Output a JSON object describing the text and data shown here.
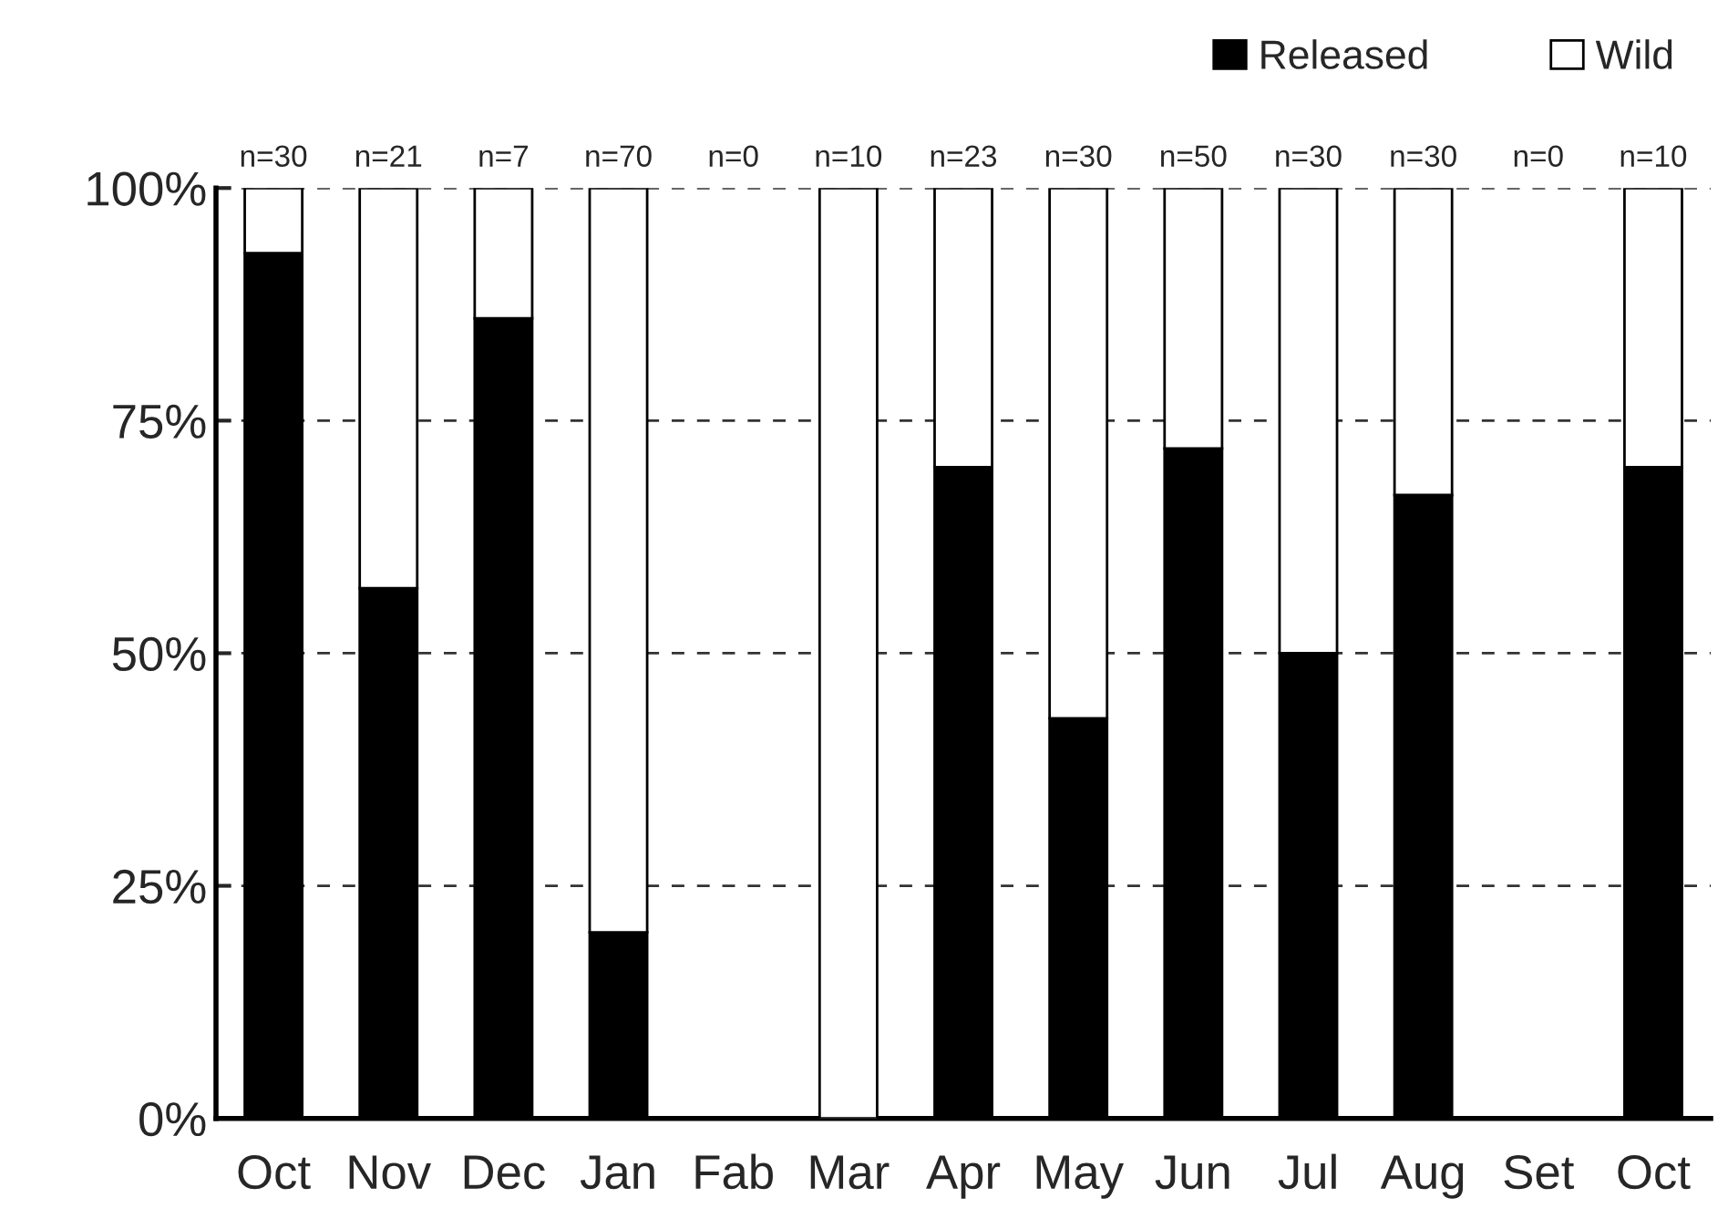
{
  "chart_data": {
    "type": "bar",
    "stacked": true,
    "categories": [
      "Oct",
      "Nov",
      "Dec",
      "Jan",
      "Fab",
      "Mar",
      "Apr",
      "May",
      "Jun",
      "Jul",
      "Aug",
      "Set",
      "Oct"
    ],
    "series": [
      {
        "name": "Released",
        "color": "#000000",
        "values": [
          93,
          57,
          86,
          20,
          null,
          0,
          70,
          43,
          72,
          50,
          67,
          null,
          70
        ]
      },
      {
        "name": "Wild",
        "color": "#ffffff",
        "values": [
          7,
          43,
          14,
          80,
          null,
          100,
          30,
          57,
          28,
          50,
          33,
          null,
          30
        ]
      }
    ],
    "ylim": [
      0,
      100
    ],
    "yticks": [
      {
        "value": 0,
        "label": "0%"
      },
      {
        "value": 25,
        "label": "25%"
      },
      {
        "value": 50,
        "label": "50%"
      },
      {
        "value": 75,
        "label": "75%"
      },
      {
        "value": 100,
        "label": "100%"
      }
    ],
    "grid": "y",
    "legend": "top right",
    "annotations": [
      "n=30",
      "n=21",
      "n=7",
      "n=70",
      "n=0",
      "n=10",
      "n=23",
      "n=30",
      "n=50",
      "n=30",
      "n=30",
      "n=0",
      "n=10"
    ]
  }
}
